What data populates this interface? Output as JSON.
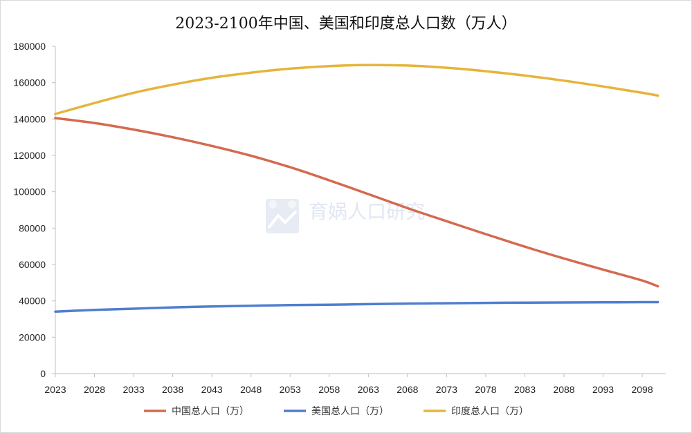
{
  "chart_data": {
    "type": "line",
    "title": "2023-2100年中国、美国和印度总人口数（万人）",
    "xlabel": "",
    "ylabel": "",
    "x": [
      2023,
      2028,
      2033,
      2038,
      2043,
      2048,
      2053,
      2058,
      2063,
      2068,
      2073,
      2078,
      2083,
      2088,
      2093,
      2098,
      2100
    ],
    "x_tick_labels": [
      "2023",
      "2028",
      "2033",
      "2038",
      "2043",
      "2048",
      "2053",
      "2058",
      "2063",
      "2068",
      "2073",
      "2078",
      "2083",
      "2088",
      "2093",
      "2098"
    ],
    "xlim": [
      2023,
      2101
    ],
    "ylim": [
      0,
      180000
    ],
    "y_ticks": [
      0,
      20000,
      40000,
      60000,
      80000,
      100000,
      120000,
      140000,
      160000,
      180000
    ],
    "y_tick_labels": [
      "0",
      "20000",
      "40000",
      "60000",
      "80000",
      "100000",
      "120000",
      "140000",
      "160000",
      "180000"
    ],
    "grid": false,
    "legend_position": "bottom",
    "series": [
      {
        "name": "中国总人口（万）",
        "color": "#d46a50",
        "values": [
          140500,
          137800,
          134200,
          130000,
          125200,
          119800,
          113500,
          106300,
          98700,
          91000,
          83800,
          76700,
          69800,
          63300,
          57200,
          51200,
          48000
        ]
      },
      {
        "name": "美国总人口（万）",
        "color": "#4f7ecf",
        "values": [
          34100,
          35000,
          35700,
          36400,
          36900,
          37300,
          37700,
          37900,
          38200,
          38500,
          38700,
          38900,
          39000,
          39100,
          39200,
          39300,
          39300
        ]
      },
      {
        "name": "印度总人口（万）",
        "color": "#e6b43c",
        "values": [
          142800,
          148800,
          154400,
          158900,
          162700,
          165500,
          167700,
          169100,
          169700,
          169400,
          168200,
          166300,
          163900,
          161100,
          157900,
          154400,
          152900
        ]
      }
    ]
  },
  "watermark": {
    "text": "育娲人口研究",
    "icon": "chart-logo-icon"
  }
}
